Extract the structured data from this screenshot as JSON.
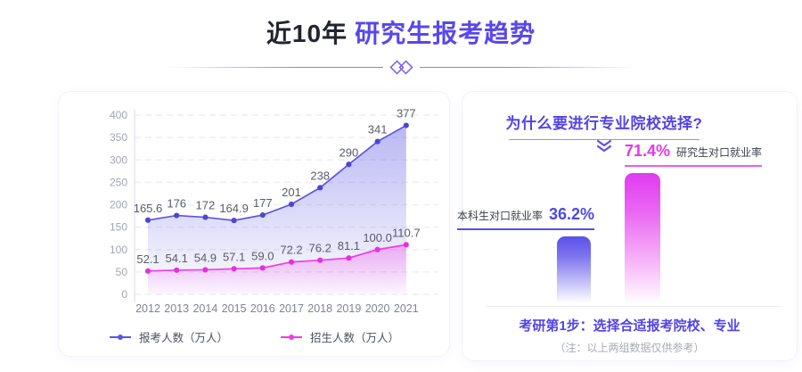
{
  "header": {
    "title_prefix": "近10年",
    "title_main": "研究生报考趋势"
  },
  "chart_data": [
    {
      "type": "area",
      "title": "近10年研究生报考趋势",
      "x": [
        "2012",
        "2013",
        "2014",
        "2015",
        "2016",
        "2017",
        "2018",
        "2019",
        "2020",
        "2021"
      ],
      "series": [
        {
          "name": "报考人数（万人）",
          "values": [
            165.6,
            176,
            172,
            164.9,
            177,
            201,
            238,
            290,
            341,
            377
          ],
          "labels": [
            "165.6",
            "176",
            "172",
            "164.9",
            "177",
            "201",
            "238",
            "290",
            "341",
            "377"
          ],
          "color": "#5a55e3",
          "dot_color": "#4b46d8"
        },
        {
          "name": "招生人数（万人）",
          "values": [
            52.1,
            54.1,
            54.9,
            57.1,
            59.0,
            72.2,
            76.2,
            81.1,
            100.0,
            110.7
          ],
          "labels": [
            "52.1",
            "54.1",
            "54.9",
            "57.1",
            "59.0",
            "72.2",
            "76.2",
            "81.1",
            "100.0",
            "110.7"
          ],
          "color": "#ef3ce9",
          "dot_color": "#e431dd"
        }
      ],
      "ylim": [
        0,
        400
      ],
      "yticks": [
        "0",
        "50",
        "100",
        "150",
        "200",
        "250",
        "300",
        "350",
        "400"
      ],
      "grid": "horizontal-dashed",
      "legend_position": "bottom"
    },
    {
      "type": "bar",
      "title": "为什么要进行专业院校选择?",
      "categories": [
        "本科生对口就业率",
        "研究生对口就业率"
      ],
      "values": [
        36.2,
        71.4
      ],
      "value_labels": [
        "36.2%",
        "71.4%"
      ],
      "colors": [
        "#5a50e9",
        "#e03bef"
      ],
      "ylim": [
        0,
        100
      ]
    }
  ],
  "right_panel": {
    "title": "为什么要进行专业院校选择?",
    "step_text": "考研第1步：选择合适报考院校、专业",
    "note_text": "（注：以上两组数据仅供参考）"
  },
  "colors": {
    "accent_purple": "#5847ec",
    "series_blue": "#5a55e3",
    "series_magenta": "#ef3ce9"
  }
}
